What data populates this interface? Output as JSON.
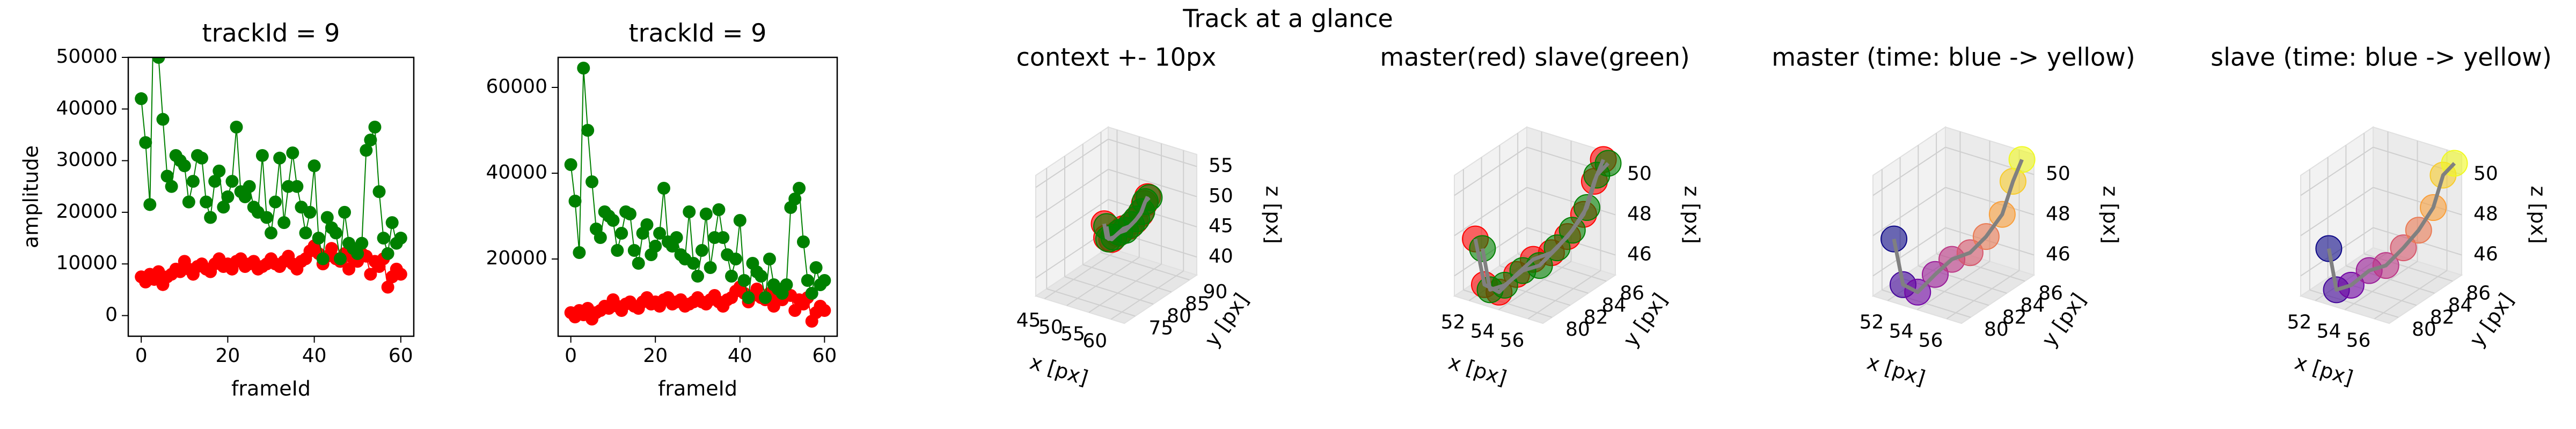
{
  "title": "Track at a glance",
  "chart_data": [
    {
      "type": "line",
      "title": "trackId = 9",
      "xlabel": "frameId",
      "ylabel": "amplitude",
      "x": [
        0,
        1,
        2,
        3,
        4,
        5,
        6,
        7,
        8,
        9,
        10,
        11,
        12,
        13,
        14,
        15,
        16,
        17,
        18,
        19,
        20,
        21,
        22,
        23,
        24,
        25,
        26,
        27,
        28,
        29,
        30,
        31,
        32,
        33,
        34,
        35,
        36,
        37,
        38,
        39,
        40,
        41,
        42,
        43,
        44,
        45,
        46,
        47,
        48,
        49,
        50,
        51,
        52,
        53,
        54,
        55,
        56,
        57,
        58,
        59,
        60
      ],
      "xlim": [
        -3,
        63
      ],
      "xticks": [
        0,
        20,
        40,
        60
      ],
      "ylim": [
        -4000,
        50000
      ],
      "yticks": [
        0,
        10000,
        20000,
        30000,
        40000,
        50000
      ],
      "series": [
        {
          "color": "#ff0000",
          "values": [
            7500,
            6500,
            8000,
            7000,
            8500,
            6000,
            7500,
            8000,
            9000,
            8500,
            10500,
            9000,
            8000,
            9500,
            10000,
            9000,
            8500,
            10000,
            11000,
            9500,
            10000,
            9000,
            10500,
            11000,
            9500,
            10000,
            10500,
            9000,
            9500,
            10000,
            11000,
            10000,
            9500,
            10500,
            11500,
            10000,
            9000,
            10500,
            11000,
            12500,
            13500,
            12000,
            10000,
            11500,
            13000,
            11000,
            10500,
            12000,
            9000,
            11000,
            10500,
            12000,
            11500,
            8000,
            10500,
            9500,
            11000,
            5500,
            7500,
            9000,
            8000
          ]
        },
        {
          "color": "#008000",
          "values": [
            42000,
            33500,
            21500,
            64500,
            50000,
            38000,
            27000,
            25000,
            31000,
            30000,
            29000,
            22000,
            26000,
            31000,
            30500,
            22000,
            19000,
            26000,
            28000,
            21000,
            23000,
            26000,
            36500,
            24000,
            23000,
            25000,
            21000,
            20000,
            31000,
            19000,
            16000,
            22000,
            30500,
            18000,
            25000,
            31500,
            25000,
            21000,
            16000,
            20000,
            29000,
            15000,
            11000,
            19000,
            17000,
            16000,
            11000,
            20000,
            14000,
            13000,
            12000,
            14000,
            32000,
            34000,
            36500,
            24000,
            15000,
            12000,
            18000,
            14000,
            15000
          ]
        }
      ]
    },
    {
      "type": "line",
      "title": "trackId = 9",
      "xlabel": "frameId",
      "x": [
        0,
        1,
        2,
        3,
        4,
        5,
        6,
        7,
        8,
        9,
        10,
        11,
        12,
        13,
        14,
        15,
        16,
        17,
        18,
        19,
        20,
        21,
        22,
        23,
        24,
        25,
        26,
        27,
        28,
        29,
        30,
        31,
        32,
        33,
        34,
        35,
        36,
        37,
        38,
        39,
        40,
        41,
        42,
        43,
        44,
        45,
        46,
        47,
        48,
        49,
        50,
        51,
        52,
        53,
        54,
        55,
        56,
        57,
        58,
        59,
        60
      ],
      "xlim": [
        -3,
        63
      ],
      "xticks": [
        0,
        20,
        40,
        60
      ],
      "ylim": [
        2000,
        67000
      ],
      "yticks": [
        20000,
        40000,
        60000
      ],
      "series": [
        {
          "color": "#ff0000",
          "values": [
            7500,
            6500,
            8000,
            7000,
            8500,
            6000,
            7500,
            8000,
            9000,
            8500,
            10500,
            9000,
            8000,
            9500,
            10000,
            9000,
            8500,
            10000,
            11000,
            9500,
            10000,
            9000,
            10500,
            11000,
            9500,
            10000,
            10500,
            9000,
            9500,
            10000,
            11000,
            10000,
            9500,
            10500,
            11500,
            10000,
            9000,
            10500,
            11000,
            12500,
            13500,
            12000,
            10000,
            11500,
            13000,
            11000,
            10500,
            12000,
            9000,
            11000,
            10500,
            12000,
            11500,
            8000,
            10500,
            9500,
            11000,
            5500,
            7500,
            9000,
            8000
          ]
        },
        {
          "color": "#008000",
          "values": [
            42000,
            33500,
            21500,
            64500,
            50000,
            38000,
            27000,
            25000,
            31000,
            30000,
            29000,
            22000,
            26000,
            31000,
            30500,
            22000,
            19000,
            26000,
            28000,
            21000,
            23000,
            26000,
            36500,
            24000,
            23000,
            25000,
            21000,
            20000,
            31000,
            19000,
            16000,
            22000,
            30500,
            18000,
            25000,
            31500,
            25000,
            21000,
            16000,
            20000,
            29000,
            15000,
            11000,
            19000,
            17000,
            16000,
            11000,
            20000,
            14000,
            13000,
            12000,
            14000,
            32000,
            34000,
            36500,
            24000,
            15000,
            12000,
            18000,
            14000,
            15000
          ]
        }
      ]
    },
    {
      "type": "scatter3d",
      "title": "context +- 10px",
      "xlabel": "x [px]",
      "ylabel": "y [px]",
      "zlabel": "z [px]",
      "xlim": [
        43,
        63
      ],
      "xticks": [
        45,
        50,
        55,
        60
      ],
      "ylim": [
        72,
        92
      ],
      "yticks": [
        75,
        80,
        85,
        90
      ],
      "zlim": [
        37,
        57
      ],
      "zticks": [
        40,
        45,
        50,
        55
      ],
      "line_color": "#808080",
      "series": [
        {
          "color": "#ff0000",
          "x": [
            51.5,
            52.3,
            52.8,
            53.5,
            54.2,
            55,
            55.6,
            56.2,
            56.5,
            56.8
          ],
          "y": [
            80.5,
            80.2,
            81,
            81.8,
            82.5,
            83.2,
            84,
            84.8,
            85.5,
            86
          ],
          "z": [
            47.5,
            45.5,
            45,
            45.8,
            46.5,
            46.8,
            47.5,
            48.5,
            50,
            51
          ]
        },
        {
          "color": "#008000",
          "x": [
            51.8,
            52.5,
            53,
            53.8,
            54.5,
            55.2,
            55.8,
            56.3,
            56.6,
            57
          ],
          "y": [
            80.8,
            80.5,
            81.3,
            82,
            82.7,
            83.5,
            84.2,
            85,
            85.6,
            86.2
          ],
          "z": [
            47,
            45.2,
            45.3,
            46,
            46.2,
            47,
            47.8,
            48.8,
            50.3,
            50.8
          ]
        }
      ]
    },
    {
      "type": "scatter3d",
      "title": "master(red) slave(green)",
      "xlabel": "x [px]",
      "ylabel": "y [px]",
      "zlabel": "z [px]",
      "xlim": [
        51,
        57
      ],
      "xticks": [
        52,
        54,
        56
      ],
      "ylim": [
        79,
        87
      ],
      "yticks": [
        80,
        82,
        84,
        86
      ],
      "zlim": [
        45,
        51
      ],
      "zticks": [
        46,
        48,
        50
      ],
      "line_color": "#808080",
      "series": [
        {
          "color": "#ff0000",
          "x": [
            51.5,
            52.3,
            52.8,
            53.5,
            54.2,
            55,
            55.6,
            56.2,
            56.5,
            56.8
          ],
          "y": [
            80.5,
            80.2,
            81,
            81.8,
            82.5,
            83.2,
            84,
            84.8,
            85.5,
            86
          ],
          "z": [
            47.5,
            45.5,
            45,
            45.8,
            46.5,
            46.8,
            47.5,
            48.5,
            50,
            51
          ]
        },
        {
          "color": "#008000",
          "x": [
            51.8,
            52.5,
            53,
            53.8,
            54.5,
            55.2,
            55.8,
            56.3,
            56.6,
            57
          ],
          "y": [
            80.8,
            80.5,
            81.3,
            82,
            82.7,
            83.5,
            84.2,
            85,
            85.6,
            86.2
          ],
          "z": [
            47,
            45.2,
            45.3,
            46,
            46.2,
            47,
            47.8,
            48.8,
            50.3,
            50.8
          ]
        }
      ]
    },
    {
      "type": "scatter3d",
      "title": "master (time: blue -> yellow)",
      "xlabel": "x [px]",
      "ylabel": "y [px]",
      "zlabel": "z [px]",
      "xlim": [
        51,
        57
      ],
      "xticks": [
        52,
        54,
        56
      ],
      "ylim": [
        79,
        87
      ],
      "yticks": [
        80,
        82,
        84,
        86
      ],
      "zlim": [
        45,
        51
      ],
      "zticks": [
        46,
        48,
        50
      ],
      "line_color": "#808080",
      "series": [
        {
          "colormap": "plasma",
          "x": [
            51.5,
            52.3,
            52.8,
            53.5,
            54.2,
            55,
            55.6,
            56.2,
            56.5,
            56.8
          ],
          "y": [
            80.5,
            80.2,
            81,
            81.8,
            82.5,
            83.2,
            84,
            84.8,
            85.5,
            86
          ],
          "z": [
            47.5,
            45.5,
            45,
            45.8,
            46.5,
            46.8,
            47.5,
            48.5,
            50,
            51
          ]
        }
      ]
    },
    {
      "type": "scatter3d",
      "title": "slave (time: blue -> yellow)",
      "xlabel": "x [px]",
      "ylabel": "y [px]",
      "zlabel": "z [px]",
      "xlim": [
        51,
        57
      ],
      "xticks": [
        52,
        54,
        56
      ],
      "ylim": [
        79,
        87
      ],
      "yticks": [
        80,
        82,
        84,
        86
      ],
      "zlim": [
        45,
        51
      ],
      "zticks": [
        46,
        48,
        50
      ],
      "line_color": "#808080",
      "series": [
        {
          "colormap": "plasma",
          "x": [
            51.8,
            52.5,
            53,
            53.8,
            54.5,
            55.2,
            55.8,
            56.3,
            56.6,
            57
          ],
          "y": [
            80.8,
            80.5,
            81.3,
            82,
            82.7,
            83.5,
            84.2,
            85,
            85.6,
            86.2
          ],
          "z": [
            47,
            45.2,
            45.3,
            46,
            46.2,
            47,
            47.8,
            48.8,
            50.3,
            50.8
          ]
        }
      ]
    }
  ]
}
